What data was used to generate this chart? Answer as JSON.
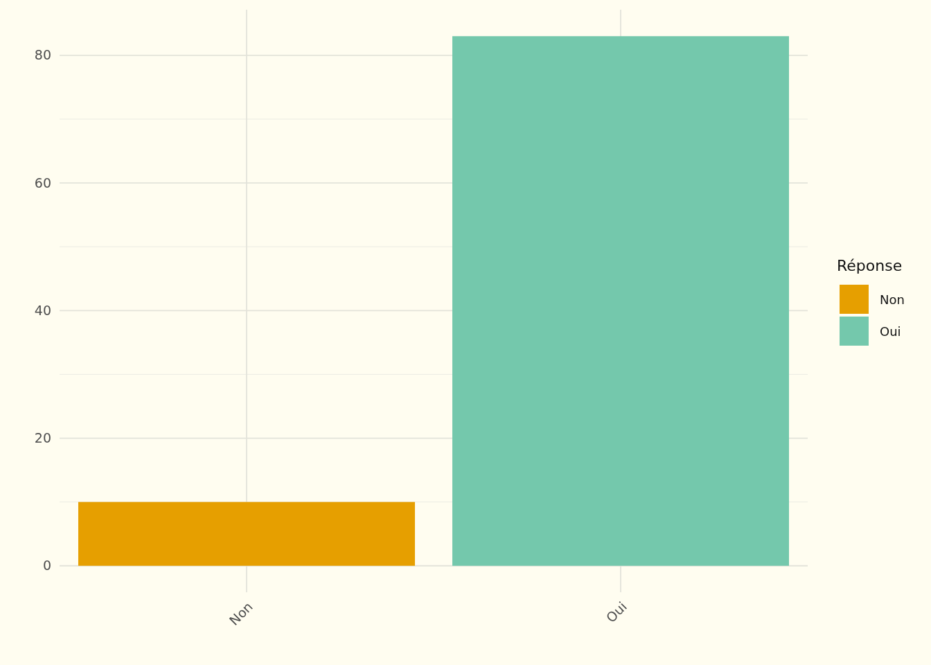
{
  "chart_data": {
    "type": "bar",
    "categories": [
      "Non",
      "Oui"
    ],
    "series": [
      {
        "name": "Non",
        "color": "#e69f00",
        "values": [
          10,
          null
        ]
      },
      {
        "name": "Oui",
        "color": "#74c8ac",
        "values": [
          null,
          83
        ]
      }
    ],
    "stacked": true,
    "ylim": [
      -4.15,
      87.15
    ],
    "yticks": [
      0,
      20,
      40,
      60,
      80
    ],
    "grid": true,
    "legend": "right",
    "legend_title": "Réponse"
  }
}
